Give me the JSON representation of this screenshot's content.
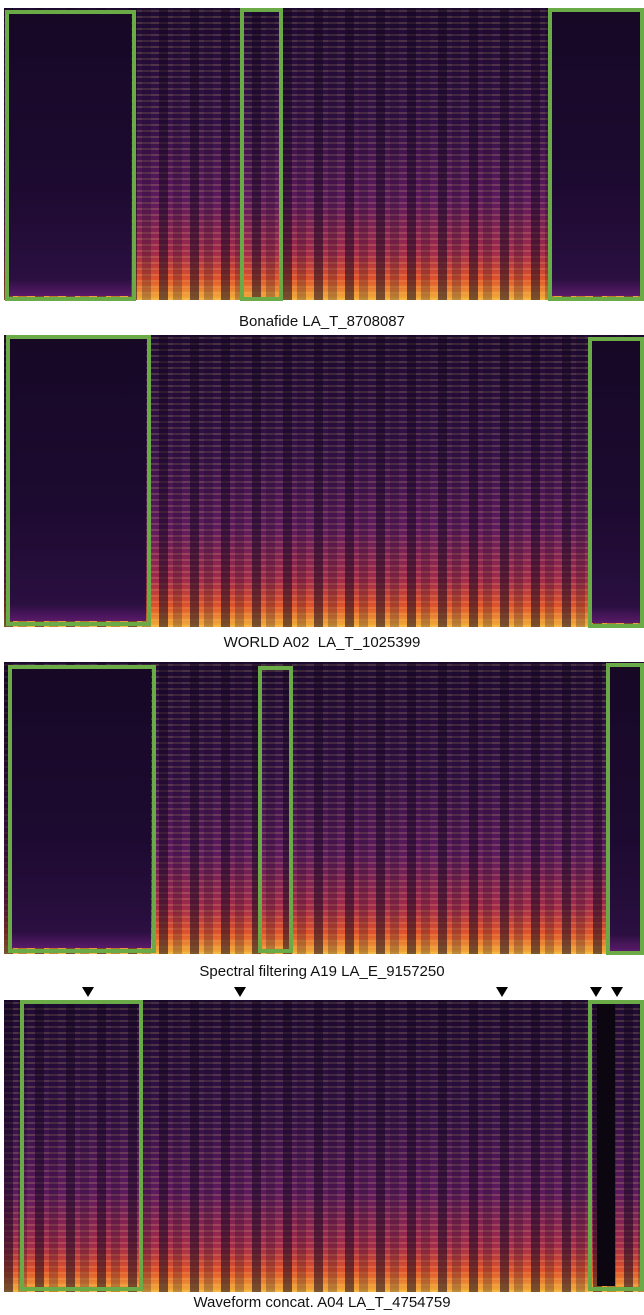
{
  "panels": [
    {
      "caption": "Bonafide LA_T_8708087"
    },
    {
      "caption": "WORLD A02  LA_T_1025399"
    },
    {
      "caption": "Spectral filtering A19 LA_E_9157250"
    },
    {
      "caption": "Waveform concat. A04 LA_T_4754759"
    }
  ]
}
